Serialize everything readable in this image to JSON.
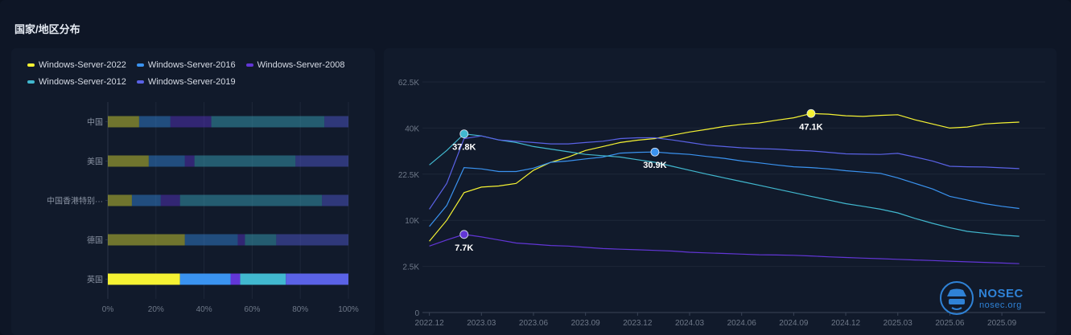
{
  "page": {
    "title": "国家/地区分布"
  },
  "colors": {
    "Windows-Server-2022": "#f5f233",
    "Windows-Server-2016": "#3a93f0",
    "Windows-Server-2008": "#6236d6",
    "Windows-Server-2012": "#41b8cf",
    "Windows-Server-2019": "#5a62e6"
  },
  "logo": {
    "main": "NOSEC",
    "sub": "nosec.org",
    "icon": "hat-spy-icon"
  },
  "chart_data": [
    {
      "type": "bar",
      "orientation": "horizontal",
      "stacked": "percent",
      "legend_position": "top-left",
      "categories": [
        "中国",
        "美国",
        "中国香港特别···",
        "德国",
        "英国"
      ],
      "highlighted_category": "英国",
      "xlim": [
        0,
        100
      ],
      "x_ticks": [
        "0%",
        "20%",
        "40%",
        "60%",
        "80%",
        "100%"
      ],
      "series": [
        {
          "name": "Windows-Server-2022",
          "values": [
            13,
            17,
            10,
            32,
            30
          ]
        },
        {
          "name": "Windows-Server-2016",
          "values": [
            13,
            15,
            12,
            22,
            21
          ]
        },
        {
          "name": "Windows-Server-2008",
          "values": [
            17,
            4,
            8,
            3,
            4
          ]
        },
        {
          "name": "Windows-Server-2012",
          "values": [
            47,
            42,
            59,
            13,
            19
          ]
        },
        {
          "name": "Windows-Server-2019",
          "values": [
            10,
            22,
            11,
            30,
            26
          ]
        }
      ]
    },
    {
      "type": "line",
      "ylim": [
        0,
        62.5
      ],
      "y_ticks": [
        "0",
        "2.5K",
        "10K",
        "22.5K",
        "40K",
        "62.5K"
      ],
      "x_ticks": [
        "2022.12",
        "2023.03",
        "2023.06",
        "2023.09",
        "2023.12",
        "2024.03",
        "2024.06",
        "2024.09",
        "2024.12",
        "2025.03",
        "2025.06",
        "2025.09"
      ],
      "annotations": [
        {
          "series": "Windows-Server-2012",
          "x": "2023.02",
          "value": 37.8,
          "label": "37.8K"
        },
        {
          "series": "Windows-Server-2016",
          "x": "2024.01",
          "value": 30.9,
          "label": "30.9K"
        },
        {
          "series": "Windows-Server-2022",
          "x": "2024.10",
          "value": 47.1,
          "label": "47.1K"
        },
        {
          "series": "Windows-Server-2008",
          "x": "2023.02",
          "value": 7.7,
          "label": "7.7K"
        }
      ],
      "series": [
        {
          "name": "Windows-Server-2022",
          "points": [
            [
              "2022.12",
              6.6
            ],
            [
              "2023.01",
              10
            ],
            [
              "2023.02",
              17.5
            ],
            [
              "2023.03",
              19
            ],
            [
              "2023.04",
              19.3
            ],
            [
              "2023.05",
              20
            ],
            [
              "2023.06",
              24
            ],
            [
              "2023.07",
              27
            ],
            [
              "2023.08",
              29
            ],
            [
              "2023.09",
              31.5
            ],
            [
              "2023.10",
              33
            ],
            [
              "2023.11",
              34.5
            ],
            [
              "2023.12",
              35.4
            ],
            [
              "2024.01",
              36
            ],
            [
              "2024.02",
              37.3
            ],
            [
              "2024.03",
              38.5
            ],
            [
              "2024.04",
              39.5
            ],
            [
              "2024.05",
              40.8
            ],
            [
              "2024.06",
              41.8
            ],
            [
              "2024.07",
              42.5
            ],
            [
              "2024.08",
              43.8
            ],
            [
              "2024.09",
              45
            ],
            [
              "2024.10",
              47.1
            ],
            [
              "2024.11",
              46.8
            ],
            [
              "2024.12",
              46
            ],
            [
              "2025.01",
              45.7
            ],
            [
              "2025.02",
              46.2
            ],
            [
              "2025.03",
              46.5
            ],
            [
              "2025.04",
              44
            ],
            [
              "2025.05",
              42
            ],
            [
              "2025.06",
              40
            ],
            [
              "2025.07",
              40.5
            ],
            [
              "2025.08",
              42
            ],
            [
              "2025.09",
              42.5
            ],
            [
              "2025.10",
              42.9
            ]
          ]
        },
        {
          "name": "Windows-Server-2016",
          "points": [
            [
              "2022.12",
              9
            ],
            [
              "2023.01",
              14
            ],
            [
              "2023.02",
              25
            ],
            [
              "2023.03",
              24.5
            ],
            [
              "2023.04",
              23.5
            ],
            [
              "2023.05",
              23.5
            ],
            [
              "2023.06",
              24.8
            ],
            [
              "2023.07",
              27
            ],
            [
              "2023.08",
              27.5
            ],
            [
              "2023.09",
              28.3
            ],
            [
              "2023.10",
              29
            ],
            [
              "2023.11",
              30.5
            ],
            [
              "2023.12",
              30.8
            ],
            [
              "2024.01",
              30.9
            ],
            [
              "2024.02",
              30.4
            ],
            [
              "2024.03",
              30
            ],
            [
              "2024.04",
              29.2
            ],
            [
              "2024.05",
              28.5
            ],
            [
              "2024.06",
              27.5
            ],
            [
              "2024.07",
              26.8
            ],
            [
              "2024.08",
              26
            ],
            [
              "2024.09",
              25.3
            ],
            [
              "2024.10",
              25
            ],
            [
              "2024.11",
              24.5
            ],
            [
              "2024.12",
              23.8
            ],
            [
              "2025.01",
              23.3
            ],
            [
              "2025.02",
              22.8
            ],
            [
              "2025.03",
              21.5
            ],
            [
              "2025.04",
              20
            ],
            [
              "2025.05",
              18.5
            ],
            [
              "2025.06",
              16.5
            ],
            [
              "2025.07",
              15.5
            ],
            [
              "2025.08",
              14.5
            ],
            [
              "2025.09",
              13.8
            ],
            [
              "2025.10",
              13.2
            ]
          ]
        },
        {
          "name": "Windows-Server-2008",
          "points": [
            [
              "2022.12",
              5.8
            ],
            [
              "2023.01",
              6.8
            ],
            [
              "2023.02",
              7.7
            ],
            [
              "2023.03",
              7.3
            ],
            [
              "2023.04",
              6.8
            ],
            [
              "2023.05",
              6.3
            ],
            [
              "2023.06",
              6.1
            ],
            [
              "2023.07",
              5.9
            ],
            [
              "2023.08",
              5.8
            ],
            [
              "2023.09",
              5.6
            ],
            [
              "2023.10",
              5.4
            ],
            [
              "2023.11",
              5.3
            ],
            [
              "2023.12",
              5.2
            ],
            [
              "2024.01",
              5.1
            ],
            [
              "2024.02",
              5
            ],
            [
              "2024.03",
              4.8
            ],
            [
              "2024.04",
              4.7
            ],
            [
              "2024.05",
              4.6
            ],
            [
              "2024.06",
              4.5
            ],
            [
              "2024.07",
              4.4
            ],
            [
              "2024.08",
              4.35
            ],
            [
              "2024.09",
              4.3
            ],
            [
              "2024.10",
              4.2
            ],
            [
              "2024.11",
              4.05
            ],
            [
              "2024.12",
              3.95
            ],
            [
              "2025.01",
              3.85
            ],
            [
              "2025.02",
              3.75
            ],
            [
              "2025.03",
              3.65
            ],
            [
              "2025.04",
              3.55
            ],
            [
              "2025.05",
              3.45
            ],
            [
              "2025.06",
              3.35
            ],
            [
              "2025.07",
              3.25
            ],
            [
              "2025.08",
              3.15
            ],
            [
              "2025.09",
              3.05
            ],
            [
              "2025.10",
              2.95
            ]
          ]
        },
        {
          "name": "Windows-Server-2012",
          "points": [
            [
              "2022.12",
              26
            ],
            [
              "2023.01",
              31.5
            ],
            [
              "2023.02",
              37.8
            ],
            [
              "2023.03",
              37
            ],
            [
              "2023.04",
              35.5
            ],
            [
              "2023.05",
              34.5
            ],
            [
              "2023.06",
              33
            ],
            [
              "2023.07",
              32
            ],
            [
              "2023.08",
              31
            ],
            [
              "2023.09",
              30
            ],
            [
              "2023.10",
              29.5
            ],
            [
              "2023.11",
              29
            ],
            [
              "2023.12",
              28
            ],
            [
              "2024.01",
              27
            ],
            [
              "2024.02",
              25.5
            ],
            [
              "2024.03",
              24
            ],
            [
              "2024.04",
              22.5
            ],
            [
              "2024.05",
              21.5
            ],
            [
              "2024.06",
              20.5
            ],
            [
              "2024.07",
              19.5
            ],
            [
              "2024.08",
              18.5
            ],
            [
              "2024.09",
              17.5
            ],
            [
              "2024.10",
              16.5
            ],
            [
              "2024.11",
              15.5
            ],
            [
              "2024.12",
              14.5
            ],
            [
              "2025.01",
              13.8
            ],
            [
              "2025.02",
              13
            ],
            [
              "2025.03",
              12
            ],
            [
              "2025.04",
              10.5
            ],
            [
              "2025.05",
              9.5
            ],
            [
              "2025.06",
              8.8
            ],
            [
              "2025.07",
              8.2
            ],
            [
              "2025.08",
              7.9
            ],
            [
              "2025.09",
              7.6
            ],
            [
              "2025.10",
              7.4
            ]
          ]
        },
        {
          "name": "Windows-Server-2019",
          "points": [
            [
              "2022.12",
              13
            ],
            [
              "2023.01",
              20
            ],
            [
              "2023.02",
              36
            ],
            [
              "2023.03",
              37
            ],
            [
              "2023.04",
              35.5
            ],
            [
              "2023.05",
              35
            ],
            [
              "2023.06",
              34.5
            ],
            [
              "2023.07",
              34
            ],
            [
              "2023.08",
              34
            ],
            [
              "2023.09",
              34.5
            ],
            [
              "2023.10",
              35
            ],
            [
              "2023.11",
              36
            ],
            [
              "2023.12",
              36.3
            ],
            [
              "2024.01",
              36.3
            ],
            [
              "2024.02",
              35.5
            ],
            [
              "2024.03",
              34.5
            ],
            [
              "2024.04",
              33.5
            ],
            [
              "2024.05",
              33
            ],
            [
              "2024.06",
              32.5
            ],
            [
              "2024.07",
              32.2
            ],
            [
              "2024.08",
              32
            ],
            [
              "2024.09",
              31.6
            ],
            [
              "2024.10",
              31.3
            ],
            [
              "2024.11",
              30.8
            ],
            [
              "2024.12",
              30.2
            ],
            [
              "2025.01",
              30.1
            ],
            [
              "2025.02",
              30
            ],
            [
              "2025.03",
              30.4
            ],
            [
              "2025.04",
              29
            ],
            [
              "2025.05",
              27.5
            ],
            [
              "2025.06",
              25.5
            ],
            [
              "2025.07",
              25.3
            ],
            [
              "2025.08",
              25.2
            ],
            [
              "2025.09",
              24.9
            ],
            [
              "2025.10",
              24.6
            ]
          ]
        }
      ]
    }
  ]
}
